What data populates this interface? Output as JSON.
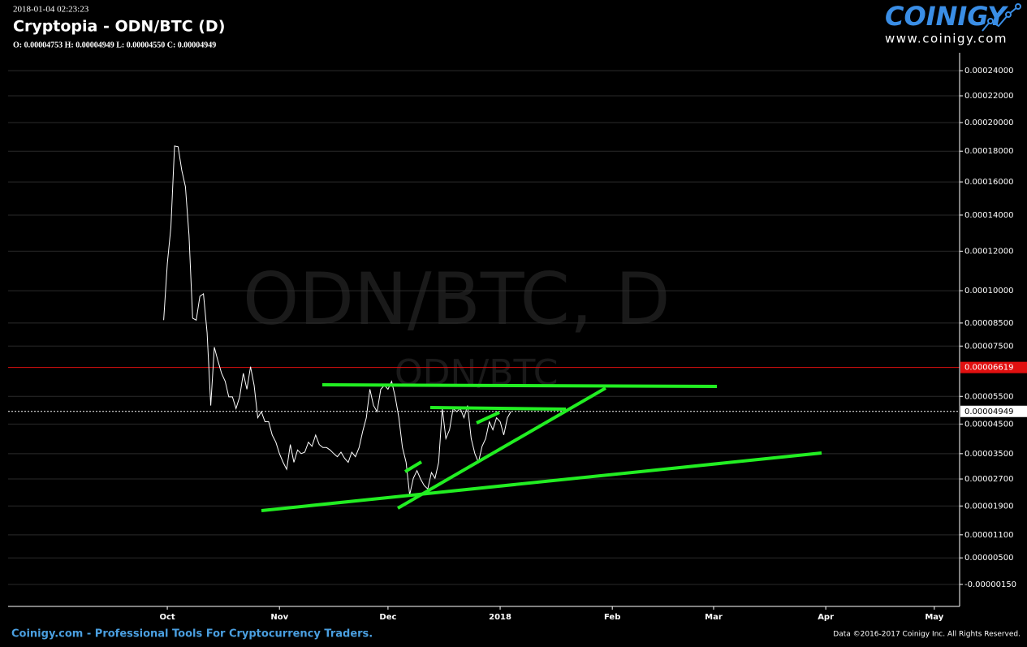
{
  "header": {
    "timestamp": "2018-01-04 02:23:23",
    "title": "Cryptopia - ODN/BTC (D)",
    "ohlc": "O: 0.00004753 H: 0.00004949 L: 0.00004550 C: 0.00004949"
  },
  "logo": {
    "name": "COINIGY",
    "url": "www.coinigy.com"
  },
  "watermark": {
    "main": "ODN/BTC, D",
    "sub": "ODN/BTC"
  },
  "footer": {
    "left": "Coinigy.com - Professional Tools For Cryptocurrency Traders.",
    "right": "Data ©2016-2017 Coinigy Inc. All Rights Reserved."
  },
  "chart_data": {
    "type": "line",
    "color": "#ffffff",
    "log_scale": true,
    "x": [
      -1,
      0,
      1,
      2,
      3,
      4,
      5,
      6,
      7,
      8,
      9,
      10,
      11,
      12,
      13,
      14,
      15,
      16,
      17,
      18,
      19,
      20,
      21,
      22,
      23,
      24,
      25,
      26,
      27,
      28,
      29,
      30,
      31,
      32,
      33,
      34,
      35,
      36,
      37,
      38,
      39,
      40,
      41,
      42,
      43,
      44,
      45,
      46,
      47,
      48,
      49,
      50,
      51,
      52,
      53,
      54,
      55,
      56,
      57,
      58,
      59,
      60,
      61,
      62,
      63,
      64,
      65,
      66,
      67,
      68,
      69,
      70,
      71,
      72,
      73,
      74,
      75,
      76,
      77,
      78,
      79,
      80,
      81,
      82,
      83,
      84,
      85,
      86,
      87,
      88,
      89,
      90,
      91,
      92,
      93,
      94,
      95
    ],
    "values": [
      8.63e-05,
      0.0001135,
      0.0001331,
      0.0001835,
      0.000183,
      0.0001673,
      0.000157,
      0.0001286,
      8.72e-05,
      8.63e-05,
      9.73e-05,
      9.85e-05,
      8.07e-05,
      5.16e-05,
      7.45e-05,
      6.88e-05,
      6.39e-05,
      6.07e-05,
      5.48e-05,
      5.48e-05,
      5.05e-05,
      5.48e-05,
      6.39e-05,
      5.77e-05,
      6.65e-05,
      5.92e-05,
      4.72e-05,
      4.94e-05,
      4.58e-05,
      4.58e-05,
      4.12e-05,
      3.88e-05,
      3.5e-05,
      3.22e-05,
      3e-05,
      3.8e-05,
      3.22e-05,
      3.62e-05,
      3.5e-05,
      3.55e-05,
      3.88e-05,
      3.74e-05,
      4.12e-05,
      3.8e-05,
      3.7e-05,
      3.7e-05,
      3.62e-05,
      3.5e-05,
      3.4e-05,
      3.55e-05,
      3.35e-05,
      3.22e-05,
      3.55e-05,
      3.4e-05,
      3.7e-05,
      4.24e-05,
      4.72e-05,
      5.77e-05,
      5.16e-05,
      4.94e-05,
      5.77e-05,
      5.92e-05,
      5.77e-05,
      6.07e-05,
      5.48e-05,
      4.72e-05,
      3.7e-05,
      3.22e-05,
      2.22e-05,
      2.72e-05,
      2.96e-05,
      2.7e-05,
      2.5e-05,
      2.4e-05,
      2.9e-05,
      2.72e-05,
      3.22e-05,
      5.05e-05,
      4e-05,
      4.3e-05,
      5.05e-05,
      4.94e-05,
      5.05e-05,
      4.72e-05,
      5.16e-05,
      4e-05,
      3.5e-05,
      3.22e-05,
      3.74e-05,
      4e-05,
      4.58e-05,
      4.3e-05,
      4.72e-05,
      4.58e-05,
      4.12e-05,
      4.72e-05,
      4.949e-05
    ],
    "xlim": [
      -44,
      219
    ],
    "xticks": [
      {
        "value": 0,
        "label": "Oct"
      },
      {
        "value": 31,
        "label": "Nov"
      },
      {
        "value": 61,
        "label": "Dec"
      },
      {
        "value": 92,
        "label": "2018"
      },
      {
        "value": 123,
        "label": "Feb"
      },
      {
        "value": 151,
        "label": "Mar"
      },
      {
        "value": 182,
        "label": "Apr"
      },
      {
        "value": 212,
        "label": "May"
      }
    ],
    "ylim": [
      -6.6e-06,
      0.000255
    ],
    "yticks": [
      {
        "value": 0.00024,
        "label": "0.00024000"
      },
      {
        "value": 0.00022,
        "label": "0.00022000"
      },
      {
        "value": 0.0002,
        "label": "0.00020000"
      },
      {
        "value": 0.00018,
        "label": "0.00018000"
      },
      {
        "value": 0.00016,
        "label": "0.00016000"
      },
      {
        "value": 0.00014,
        "label": "0.00014000"
      },
      {
        "value": 0.00012,
        "label": "0.00012000"
      },
      {
        "value": 0.0001,
        "label": "0.00010000"
      },
      {
        "value": 8.5e-05,
        "label": "0.00008500"
      },
      {
        "value": 7.5e-05,
        "label": "0.00007500"
      },
      {
        "value": 5.5e-05,
        "label": "0.00005500"
      },
      {
        "value": 4.5e-05,
        "label": "0.00004500"
      },
      {
        "value": 3.5e-05,
        "label": "0.00003500"
      },
      {
        "value": 2.7e-05,
        "label": "0.00002700"
      },
      {
        "value": 1.9e-05,
        "label": "0.00001900"
      },
      {
        "value": 1.1e-05,
        "label": "0.00001100"
      },
      {
        "value": 5e-06,
        "label": "0.00000500"
      },
      {
        "value": -1.5e-06,
        "label": "-0.00000150"
      }
    ],
    "grid": true,
    "alert_line": {
      "value": 6.619e-05,
      "color": "#e01010"
    },
    "last_price": 4.949e-05
  }
}
